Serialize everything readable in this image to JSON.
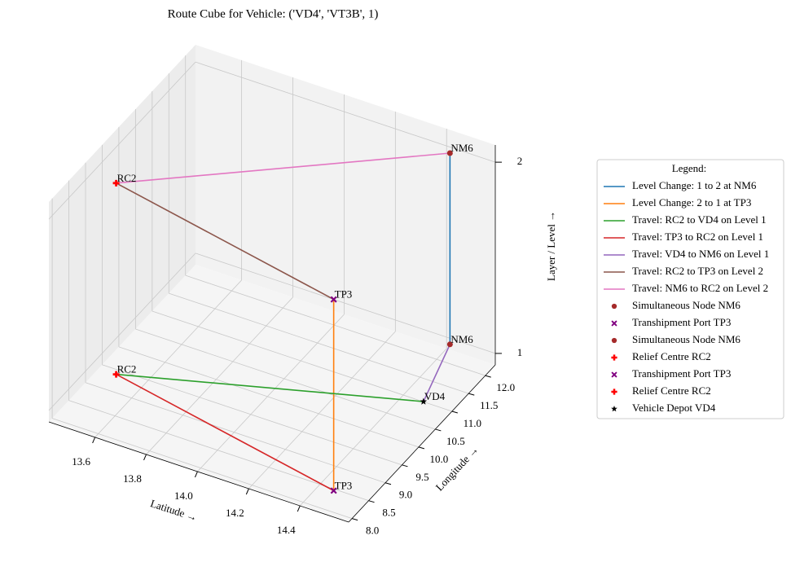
{
  "chart_data": {
    "type": "line3d",
    "title": "Route Cube for Vehicle:   ('VD4', 'VT3B', 1)",
    "xlabel": "Latitude →",
    "ylabel": "Longitude →",
    "zlabel": "Layer / Level →",
    "xlim": [
      13.42,
      14.59
    ],
    "ylim": [
      7.9,
      12.3
    ],
    "zlim": [
      0.94,
      2.09
    ],
    "xticks": [
      13.6,
      13.8,
      {
        "value": 14,
        "label": "14.0"
      },
      14.2,
      14.4
    ],
    "yticks": [
      {
        "value": 8,
        "label": "8.0"
      },
      8.5,
      {
        "value": 9,
        "label": "9.0"
      },
      9.5,
      {
        "value": 10,
        "label": "10.0"
      },
      10.5,
      {
        "value": 11,
        "label": "11.0"
      },
      11.5,
      {
        "value": 12,
        "label": "12.0"
      }
    ],
    "zticks": [
      1,
      2
    ],
    "grid": true,
    "legend_title": "Legend:",
    "legend_position": "right",
    "series": [
      {
        "name": "Level Change: 1 to 2 at NM6",
        "color": "#1f77b4",
        "x": [
          14.43,
          14.43
        ],
        "y": [
          12.17,
          12.17
        ],
        "z": [
          1,
          2
        ]
      },
      {
        "name": "Level Change: 2 to 1 at TP3",
        "color": "#ff7f0e",
        "x": [
          14.49,
          14.49
        ],
        "y": [
          8.22,
          8.22
        ],
        "z": [
          2,
          1
        ]
      },
      {
        "name": "Travel: RC2 to VD4 on Level 1",
        "color": "#2ca02c",
        "x": [
          13.52,
          14.51
        ],
        "y": [
          9.15,
          10.76
        ],
        "z": [
          1,
          1
        ]
      },
      {
        "name": "Travel: TP3 to RC2 on Level 1",
        "color": "#d62728",
        "x": [
          14.49,
          13.52
        ],
        "y": [
          8.22,
          9.15
        ],
        "z": [
          1,
          1
        ]
      },
      {
        "name": "Travel: VD4 to NM6 on Level 1",
        "color": "#9467bd",
        "x": [
          14.51,
          14.43
        ],
        "y": [
          10.76,
          12.17
        ],
        "z": [
          1,
          1
        ]
      },
      {
        "name": "Travel: RC2 to TP3 on Level 2",
        "color": "#8c564b",
        "x": [
          13.52,
          14.49
        ],
        "y": [
          9.15,
          8.22
        ],
        "z": [
          2,
          2
        ]
      },
      {
        "name": "Travel: NM6 to RC2 on Level 2",
        "color": "#e377c2",
        "x": [
          14.43,
          13.52
        ],
        "y": [
          12.17,
          9.15
        ],
        "z": [
          2,
          2
        ]
      },
      {
        "name": "Simultaneous Node NM6",
        "color": "#a52a2a",
        "marker": "o",
        "label": "NM6",
        "x": [
          14.43
        ],
        "y": [
          12.17
        ],
        "z": [
          2
        ]
      },
      {
        "name": "Transhipment Port TP3",
        "color": "#800080",
        "marker": "X",
        "label": "TP3",
        "x": [
          14.49
        ],
        "y": [
          8.22
        ],
        "z": [
          2
        ]
      },
      {
        "name": "Simultaneous Node NM6",
        "color": "#a52a2a",
        "marker": "o",
        "label": "NM6",
        "x": [
          14.43
        ],
        "y": [
          12.17
        ],
        "z": [
          1
        ]
      },
      {
        "name": "Relief Centre RC2",
        "color": "#ff0000",
        "marker": "P",
        "label": "RC2",
        "x": [
          13.52
        ],
        "y": [
          9.15
        ],
        "z": [
          2
        ]
      },
      {
        "name": "Transhipment Port TP3",
        "color": "#800080",
        "marker": "X",
        "label": "TP3",
        "x": [
          14.49
        ],
        "y": [
          8.22
        ],
        "z": [
          1
        ]
      },
      {
        "name": "Relief Centre RC2",
        "color": "#ff0000",
        "marker": "P",
        "label": "RC2",
        "x": [
          13.52
        ],
        "y": [
          9.15
        ],
        "z": [
          1
        ]
      },
      {
        "name": "Vehicle Depot VD4",
        "color": "#000000",
        "marker": "*",
        "label": "VD4",
        "x": [
          14.51
        ],
        "y": [
          10.76
        ],
        "z": [
          1
        ]
      }
    ]
  }
}
